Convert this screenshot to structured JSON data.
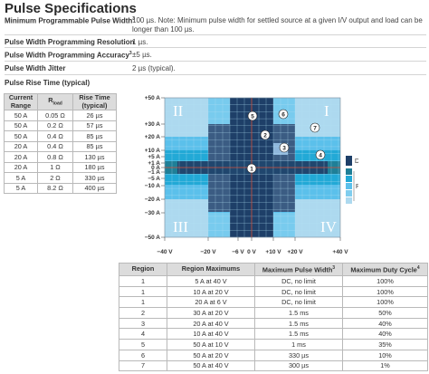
{
  "title": "Pulse Specifications",
  "specs": [
    {
      "label": "Minimum Programmable Pulse Width",
      "sup": "3",
      "value": "100 µs. Note: Minimum pulse width for settled source at a given I/V output and load can be longer than 100 µs."
    },
    {
      "label": "Pulse Width Programming Resolution",
      "sup": "",
      "value": "1 µs."
    },
    {
      "label": "Pulse Width Programming Accuracy",
      "sup": "3",
      "value": "±5 µs."
    },
    {
      "label": "Pulse Width Jitter",
      "sup": "",
      "value": "2 µs (typical)."
    }
  ],
  "rise_time": {
    "title": "Pulse Rise Time (typical)",
    "headers": {
      "range_line1": "Current",
      "range_line2": "Range",
      "r_main": "R",
      "r_sub": "load",
      "rise_line1": "Rise Time",
      "rise_line2": "(typical)"
    },
    "rows": [
      {
        "range": "50 A",
        "rload": "0.05 Ω",
        "rise": "26 µs"
      },
      {
        "range": "50 A",
        "rload": "0.2 Ω",
        "rise": "57 µs"
      },
      {
        "range": "50 A",
        "rload": "0.4 Ω",
        "rise": "85 µs"
      },
      {
        "range": "20 A",
        "rload": "0.4 Ω",
        "rise": "85 µs"
      },
      {
        "range": "20 A",
        "rload": "0.8 Ω",
        "rise": "130 µs"
      },
      {
        "range": "20 A",
        "rload": "1 Ω",
        "rise": "180 µs"
      },
      {
        "range": "5 A",
        "rload": "2 Ω",
        "rise": "330 µs"
      },
      {
        "range": "5 A",
        "rload": "8.2 Ω",
        "rise": "400 µs"
      }
    ]
  },
  "chart": {
    "y_ticks": [
      "+50 A",
      "+30 A",
      "+20 A",
      "+10 A",
      "+5 A",
      "+1 A",
      "0 A",
      "−1 A",
      "−5 A",
      "−10 A",
      "−20 A",
      "−30 A",
      "−50 A"
    ],
    "x_ticks": [
      "−40 V",
      "−20 V",
      "−6 V",
      "0 V",
      "+10 V",
      "+20 V",
      "+40 V"
    ],
    "quadrants": [
      "I",
      "II",
      "III",
      "IV"
    ],
    "markers": [
      "1",
      "2",
      "3",
      "4",
      "5",
      "6",
      "7"
    ],
    "legend": {
      "dc": "DC",
      "pulse": "Pulse"
    },
    "colors": {
      "background": "#5bc0eb",
      "light": "#add9ef",
      "bright": "#22a9d6",
      "grid": "#b3e1f4",
      "dc_dark": "#1e3f68",
      "dc_band": "#20466e",
      "teal": "#1f7f97",
      "region2": "#3b5c83",
      "region3": "#8fb7dc",
      "axis_red": "#c8452f"
    }
  },
  "region_table": {
    "headers": {
      "region": "Region",
      "max": "Region Maximums",
      "pulse": "Maximum Pulse Width",
      "pulse_sup": "3",
      "duty": "Maximum Duty Cycle",
      "duty_sup": "4"
    },
    "rows": [
      {
        "region": "1",
        "max": "5 A at 40 V",
        "pulse": "DC, no limit",
        "duty": "100%"
      },
      {
        "region": "1",
        "max": "10 A at 20 V",
        "pulse": "DC, no limit",
        "duty": "100%"
      },
      {
        "region": "1",
        "max": "20 A at 6 V",
        "pulse": "DC, no limit",
        "duty": "100%"
      },
      {
        "region": "2",
        "max": "30 A at 20 V",
        "pulse": "1.5 ms",
        "duty": "50%"
      },
      {
        "region": "3",
        "max": "20 A at 40 V",
        "pulse": "1.5 ms",
        "duty": "40%"
      },
      {
        "region": "4",
        "max": "10 A at 40 V",
        "pulse": "1.5 ms",
        "duty": "40%"
      },
      {
        "region": "5",
        "max": "50 A at 10 V",
        "pulse": "1 ms",
        "duty": "35%"
      },
      {
        "region": "6",
        "max": "50 A at 20 V",
        "pulse": "330 µs",
        "duty": "10%"
      },
      {
        "region": "7",
        "max": "50 A at 40 V",
        "pulse": "300 µs",
        "duty": "1%"
      }
    ]
  }
}
